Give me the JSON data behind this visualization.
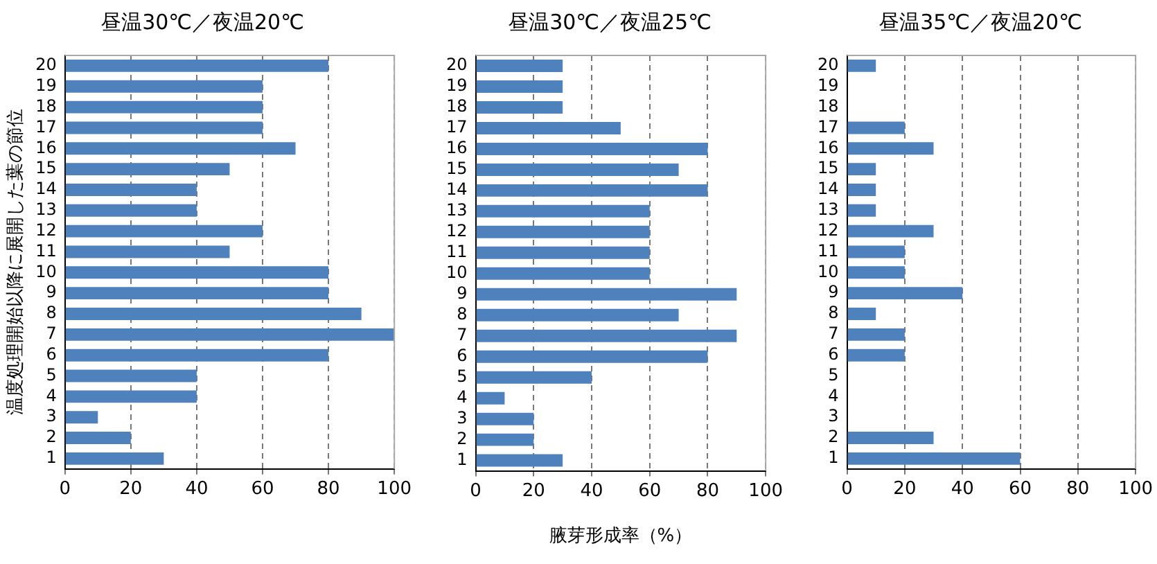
{
  "chart_data": [
    {
      "type": "bar",
      "orientation": "horizontal",
      "title": "昼温30℃／夜温20℃",
      "ylabel": "温度処理開始以降に展開した葉の節位",
      "categories": [
        "20",
        "19",
        "18",
        "17",
        "16",
        "15",
        "14",
        "13",
        "12",
        "11",
        "10",
        "9",
        "8",
        "7",
        "6",
        "5",
        "4",
        "3",
        "2",
        "1"
      ],
      "series": [
        {
          "color": "#4f81bd",
          "values": [
            80,
            60,
            60,
            60,
            70,
            50,
            40,
            40,
            60,
            50,
            80,
            80,
            90,
            100,
            80,
            40,
            40,
            10,
            20,
            30
          ]
        }
      ],
      "xlim": [
        0,
        100
      ],
      "xticks": [
        0,
        20,
        40,
        60,
        80,
        100
      ],
      "grid": "x",
      "legend": false
    },
    {
      "type": "bar",
      "orientation": "horizontal",
      "title": "昼温30℃／夜温25℃",
      "xlabel": "腋芽形成率（%）",
      "categories": [
        "20",
        "19",
        "18",
        "17",
        "16",
        "15",
        "14",
        "13",
        "12",
        "11",
        "10",
        "9",
        "8",
        "7",
        "6",
        "5",
        "4",
        "3",
        "2",
        "1"
      ],
      "series": [
        {
          "color": "#4f81bd",
          "values": [
            30,
            30,
            30,
            50,
            80,
            70,
            80,
            60,
            60,
            60,
            60,
            90,
            70,
            90,
            80,
            40,
            10,
            20,
            20,
            30
          ]
        }
      ],
      "xlim": [
        0,
        100
      ],
      "xticks": [
        0,
        20,
        40,
        60,
        80,
        100
      ],
      "grid": "x",
      "legend": false
    },
    {
      "type": "bar",
      "orientation": "horizontal",
      "title": "昼温35℃／夜温20℃",
      "categories": [
        "20",
        "19",
        "18",
        "17",
        "16",
        "15",
        "14",
        "13",
        "12",
        "11",
        "10",
        "9",
        "8",
        "7",
        "6",
        "5",
        "4",
        "3",
        "2",
        "1"
      ],
      "series": [
        {
          "color": "#4f81bd",
          "values": [
            10,
            0,
            0,
            20,
            30,
            10,
            10,
            10,
            30,
            20,
            20,
            40,
            10,
            20,
            20,
            0,
            0,
            0,
            30,
            60
          ]
        }
      ],
      "xlim": [
        0,
        100
      ],
      "xticks": [
        0,
        20,
        40,
        60,
        80,
        100
      ],
      "grid": "x",
      "legend": false
    }
  ]
}
